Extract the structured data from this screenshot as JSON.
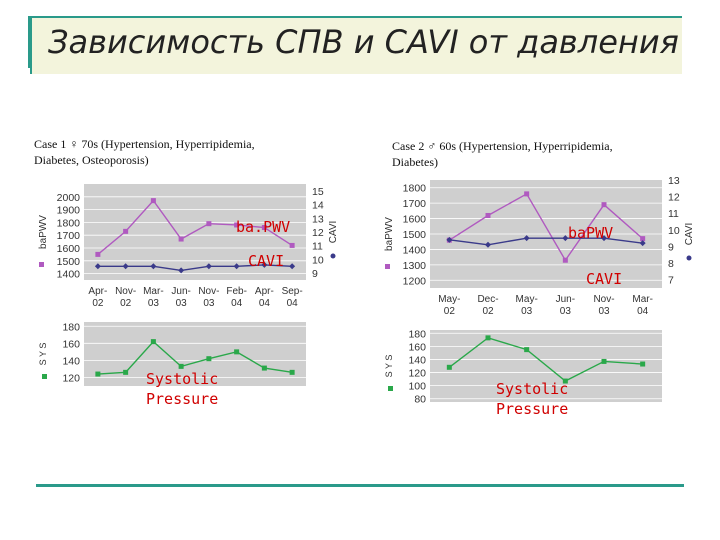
{
  "slide": {
    "title": "Зависимость  СПВ и CAVI от давления"
  },
  "colors": {
    "pwv": "#b05ac0",
    "cavi": "#3a3a8a",
    "sys": "#2aa84a",
    "plot_bg": "#cfcfcf",
    "overlay": "#d00000",
    "accent": "#2a9a8a"
  },
  "chart_data": [
    {
      "type": "line",
      "case_caption": "Case 1  ♀ 70s (Hypertension, Hyperripidemia, Diabetes, Osteoporosis)",
      "x": [
        "Apr-02",
        "Nov-02",
        "Mar-03",
        "Jun-03",
        "Nov-03",
        "Feb-04",
        "Apr-04",
        "Sep-04"
      ],
      "top": {
        "ylabel": "baPWV",
        "y2label": "CAVI",
        "ylim": [
          1350,
          2100
        ],
        "y2lim": [
          8.5,
          15.5
        ],
        "yticks": [
          1400,
          1500,
          1600,
          1700,
          1800,
          1900,
          2000
        ],
        "y2ticks": [
          9,
          10,
          11,
          12,
          13,
          14,
          15
        ],
        "series": [
          {
            "name": "baPWV",
            "axis": "left",
            "values": [
              1550,
              1730,
              1970,
              1670,
              1790,
              1780,
              1760,
              1620
            ]
          },
          {
            "name": "CAVI",
            "axis": "right",
            "values": [
              9.5,
              9.5,
              9.5,
              9.2,
              9.5,
              9.5,
              9.6,
              9.5
            ]
          }
        ]
      },
      "bottom": {
        "ylabel": "SYS",
        "ylim": [
          110,
          185
        ],
        "yticks": [
          120,
          140,
          160,
          180
        ],
        "series": [
          {
            "name": "SYS",
            "values": [
              124,
              126,
              162,
              133,
              142,
              150,
              131,
              126
            ]
          }
        ]
      },
      "overlay_labels": {
        "pwv": "ba.PWV",
        "cavi": "CAVI",
        "sys": "Systolic\nPressure"
      }
    },
    {
      "type": "line",
      "case_caption": "Case 2  ♂ 60s (Hypertension, Hyperripidemia, Diabetes)",
      "x": [
        "May-02",
        "Dec-02",
        "May-03",
        "Jun-03",
        "Nov-03",
        "Mar-04"
      ],
      "top": {
        "ylabel": "baPWV",
        "y2label": "CAVI",
        "ylim": [
          1150,
          1850
        ],
        "y2lim": [
          6.5,
          13
        ],
        "yticks": [
          1200,
          1300,
          1400,
          1500,
          1600,
          1700,
          1800
        ],
        "y2ticks": [
          7,
          8,
          9,
          10,
          11,
          12,
          13
        ],
        "series": [
          {
            "name": "baPWV",
            "axis": "left",
            "values": [
              1460,
              1620,
              1760,
              1330,
              1690,
              1470
            ]
          },
          {
            "name": "CAVI",
            "axis": "right",
            "values": [
              9.4,
              9.1,
              9.5,
              9.5,
              9.5,
              9.2
            ]
          }
        ]
      },
      "bottom": {
        "ylabel": "SYS",
        "ylim": [
          75,
          185
        ],
        "yticks": [
          80,
          100,
          120,
          140,
          160,
          180
        ],
        "series": [
          {
            "name": "SYS",
            "values": [
              128,
              173,
              155,
              107,
              137,
              133
            ]
          }
        ]
      },
      "overlay_labels": {
        "pwv": "baPWV",
        "cavi": "CAVI",
        "sys": "Systolic\nPressure"
      }
    }
  ]
}
